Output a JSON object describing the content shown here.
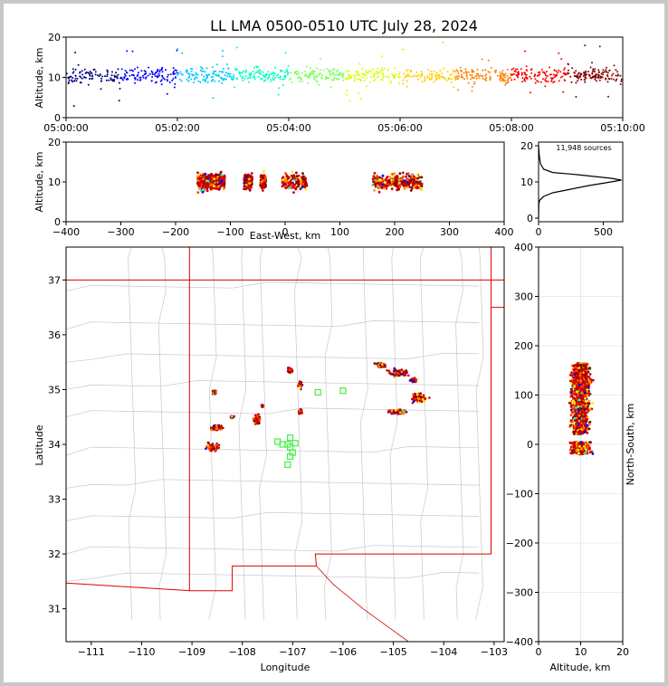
{
  "chart_data": [
    {
      "id": "time-height",
      "type": "scatter",
      "title": "LL LMA 0500-0510 UTC July 28, 2024",
      "ylabel": "Altitude, km",
      "xlabel": "",
      "xlim": [
        "05:00:00",
        "05:10:00"
      ],
      "ylim": [
        0,
        20
      ],
      "xticks": [
        "05:00:00",
        "05:02:00",
        "05:04:00",
        "05:06:00",
        "05:08:00",
        "05:10:00"
      ],
      "yticks": [
        0,
        10,
        20
      ],
      "color_by": "time",
      "summary": {
        "core_altitude_km": [
          8,
          12
        ],
        "source_altitude_km": [
          1,
          20
        ]
      }
    },
    {
      "id": "ew-height",
      "type": "scatter",
      "xlabel": "East-West, km",
      "ylabel": "Altitude, km",
      "xlim": [
        -400,
        400
      ],
      "ylim": [
        0,
        20
      ],
      "xticks": [
        -400,
        -300,
        -200,
        -100,
        0,
        100,
        200,
        300,
        400
      ],
      "yticks": [
        0,
        10,
        20
      ],
      "clusters_x_km": [
        [
          -160,
          -110
        ],
        [
          -75,
          -60
        ],
        [
          -45,
          -35
        ],
        [
          -5,
          40
        ],
        [
          160,
          250
        ]
      ]
    },
    {
      "id": "altitude-histogram",
      "type": "line",
      "annotation": "11,948 sources",
      "xlim": [
        0,
        650
      ],
      "ylim": [
        0,
        20
      ],
      "xticks": [
        0,
        500
      ],
      "yticks": [
        0,
        10,
        20
      ],
      "points": [
        [
          0,
          0
        ],
        [
          2,
          4
        ],
        [
          10,
          5
        ],
        [
          40,
          6
        ],
        [
          110,
          7
        ],
        [
          250,
          8
        ],
        [
          390,
          9
        ],
        [
          560,
          10
        ],
        [
          640,
          10.5
        ],
        [
          560,
          11
        ],
        [
          300,
          12
        ],
        [
          110,
          12.6
        ],
        [
          40,
          13.5
        ],
        [
          15,
          15
        ],
        [
          6,
          17
        ],
        [
          2,
          19
        ],
        [
          0,
          20
        ]
      ]
    },
    {
      "id": "plan-view",
      "type": "scatter",
      "xlabel": "Longitude",
      "ylabel": "Latitude",
      "xlim": [
        -111.5,
        -102.8
      ],
      "ylim": [
        30.4,
        37.6
      ],
      "xticks": [
        -111,
        -110,
        -109,
        -108,
        -107,
        -106,
        -105,
        -104,
        -103
      ],
      "yticks": [
        31,
        32,
        33,
        34,
        35,
        36,
        37
      ],
      "source_clusters": [
        {
          "lon": -108.5,
          "lat": 34.3,
          "spread": [
            0.12,
            0.05
          ]
        },
        {
          "lon": -108.6,
          "lat": 33.95,
          "spread": [
            0.12,
            0.07
          ]
        },
        {
          "lon": -108.55,
          "lat": 34.95,
          "spread": [
            0.04,
            0.04
          ]
        },
        {
          "lon": -108.2,
          "lat": 34.5,
          "spread": [
            0.04,
            0.02
          ]
        },
        {
          "lon": -107.7,
          "lat": 34.45,
          "spread": [
            0.08,
            0.1
          ]
        },
        {
          "lon": -107.6,
          "lat": 34.7,
          "spread": [
            0.02,
            0.02
          ]
        },
        {
          "lon": -107.05,
          "lat": 35.35,
          "spread": [
            0.06,
            0.05
          ]
        },
        {
          "lon": -106.85,
          "lat": 35.08,
          "spread": [
            0.04,
            0.06
          ]
        },
        {
          "lon": -106.85,
          "lat": 34.6,
          "spread": [
            0.03,
            0.04
          ]
        },
        {
          "lon": -105.25,
          "lat": 35.45,
          "spread": [
            0.1,
            0.05
          ]
        },
        {
          "lon": -104.9,
          "lat": 35.3,
          "spread": [
            0.2,
            0.07
          ]
        },
        {
          "lon": -104.6,
          "lat": 35.17,
          "spread": [
            0.06,
            0.04
          ]
        },
        {
          "lon": -104.5,
          "lat": 34.85,
          "spread": [
            0.18,
            0.08
          ]
        },
        {
          "lon": -104.9,
          "lat": 34.6,
          "spread": [
            0.2,
            0.05
          ]
        }
      ],
      "stations": [
        [
          -107.3,
          34.05
        ],
        [
          -107.2,
          34.0
        ],
        [
          -107.1,
          34.0
        ],
        [
          -106.95,
          34.02
        ],
        [
          -107.05,
          34.12
        ],
        [
          -107.05,
          33.95
        ],
        [
          -107.05,
          33.78
        ],
        [
          -107.1,
          33.63
        ],
        [
          -107.0,
          33.85
        ],
        [
          -106.5,
          34.95
        ],
        [
          -106.0,
          34.98
        ]
      ]
    },
    {
      "id": "ns-height",
      "type": "scatter",
      "xlabel": "Altitude, km",
      "ylabel": "North-South, km",
      "xlim": [
        0,
        20
      ],
      "ylim": [
        -400,
        400
      ],
      "xticks": [
        0,
        10,
        20
      ],
      "yticks": [
        -400,
        -300,
        -200,
        -100,
        0,
        100,
        200,
        300,
        400
      ],
      "bands_ns_km": [
        [
          130,
          165
        ],
        [
          100,
          130
        ],
        [
          60,
          100
        ],
        [
          20,
          60
        ],
        [
          -20,
          5
        ]
      ]
    }
  ],
  "colors": {
    "time_scale": [
      "#000080",
      "#0000ff",
      "#00c8ff",
      "#00ffc0",
      "#80ff60",
      "#d0ff00",
      "#ffd000",
      "#ff8000",
      "#ff0000",
      "#800000"
    ],
    "state_borders": "#dd0000",
    "county_lines": "#c8c8c8",
    "stations": "#44ee44"
  }
}
